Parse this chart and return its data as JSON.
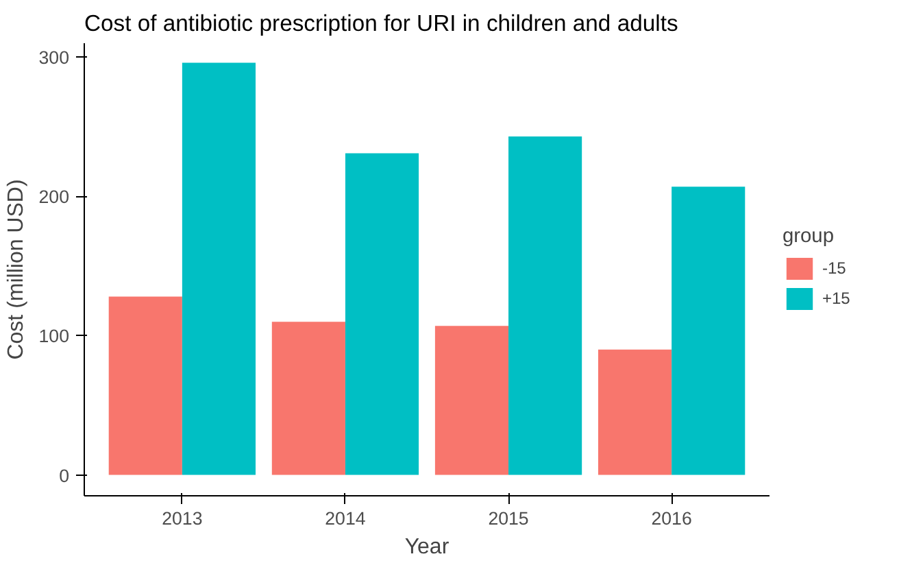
{
  "chart_data": {
    "type": "bar",
    "title": "Cost of antibiotic prescription for URI in children and adults",
    "xlabel": "Year",
    "ylabel": "Cost (million USD)",
    "legend_title": "group",
    "categories": [
      "2013",
      "2014",
      "2015",
      "2016"
    ],
    "series": [
      {
        "name": "-15",
        "color": "#f8766d",
        "values": [
          128,
          110,
          107,
          90
        ]
      },
      {
        "name": "+15",
        "color": "#00bfc4",
        "values": [
          296,
          231,
          243,
          207
        ]
      }
    ],
    "ylim": [
      -15,
      310
    ],
    "yticks": [
      0,
      100,
      200,
      300
    ],
    "grid": false,
    "legend": "right"
  }
}
